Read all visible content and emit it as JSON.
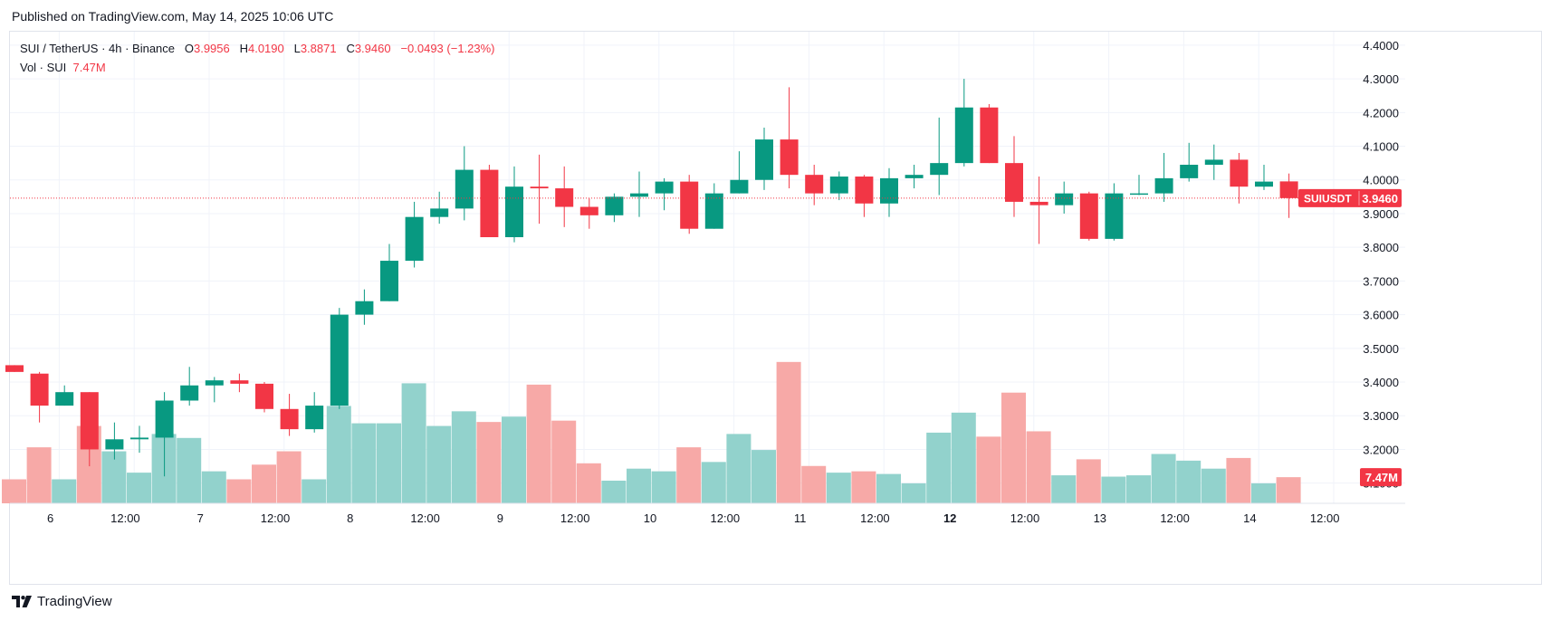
{
  "header": {
    "published": "Published on TradingView.com, May 14, 2025 10:06 UTC"
  },
  "legend": {
    "symbol": "SUI / TetherUS · 4h · Binance",
    "o_label": "O",
    "o_value": "3.9956",
    "h_label": "H",
    "h_value": "4.0190",
    "l_label": "L",
    "l_value": "3.8871",
    "c_label": "C",
    "c_value": "3.9460",
    "change": "−0.0493 (−1.23%)",
    "vol_label": "Vol · SUI",
    "vol_value": "7.47M"
  },
  "footer": {
    "brand": "TradingView",
    "logo_icon": "tradingview-logo-icon"
  },
  "colors": {
    "up": "#089981",
    "down": "#f23645",
    "up_volume": "#92d2cc",
    "down_volume": "#f7a9a7",
    "grid": "#f0f3fa",
    "text": "#131722",
    "price_line": "#f23645"
  },
  "chart_data": {
    "type": "candlestick",
    "interval": "4h",
    "y_axis": {
      "ticks": [
        "4.4000",
        "4.3000",
        "4.2000",
        "4.1000",
        "4.0000",
        "3.9000",
        "3.8000",
        "3.7000",
        "3.6000",
        "3.5000",
        "3.4000",
        "3.3000",
        "3.2000",
        "3.1000"
      ],
      "range": [
        3.04,
        4.44
      ],
      "side": "right"
    },
    "x_axis": {
      "ticks": [
        {
          "label": "6",
          "index": 1,
          "bold": false
        },
        {
          "label": "12:00",
          "index": 4,
          "bold": false
        },
        {
          "label": "7",
          "index": 7,
          "bold": false
        },
        {
          "label": "12:00",
          "index": 10,
          "bold": false
        },
        {
          "label": "8",
          "index": 13,
          "bold": false
        },
        {
          "label": "12:00",
          "index": 16,
          "bold": false
        },
        {
          "label": "9",
          "index": 19,
          "bold": false
        },
        {
          "label": "12:00",
          "index": 22,
          "bold": false
        },
        {
          "label": "10",
          "index": 25,
          "bold": false
        },
        {
          "label": "12:00",
          "index": 28,
          "bold": false
        },
        {
          "label": "11",
          "index": 31,
          "bold": false
        },
        {
          "label": "12:00",
          "index": 34,
          "bold": false
        },
        {
          "label": "12",
          "index": 37,
          "bold": true
        },
        {
          "label": "12:00",
          "index": 40,
          "bold": false
        },
        {
          "label": "13",
          "index": 43,
          "bold": false
        },
        {
          "label": "12:00",
          "index": 46,
          "bold": false
        },
        {
          "label": "14",
          "index": 49,
          "bold": false
        },
        {
          "label": "12:00",
          "index": 52,
          "bold": false
        }
      ]
    },
    "price_label": {
      "symbol": "SUIUSDT",
      "value": "3.9460",
      "price": 3.946
    },
    "volume_label": {
      "value": "7.47M"
    },
    "candles": [
      {
        "o": 3.45,
        "h": 3.45,
        "l": 3.43,
        "c": 3.43
      },
      {
        "o": 3.425,
        "h": 3.43,
        "l": 3.28,
        "c": 3.33
      },
      {
        "o": 3.33,
        "h": 3.39,
        "l": 3.33,
        "c": 3.37
      },
      {
        "o": 3.37,
        "h": 3.37,
        "l": 3.15,
        "c": 3.2
      },
      {
        "o": 3.2,
        "h": 3.28,
        "l": 3.17,
        "c": 3.23
      },
      {
        "o": 3.23,
        "h": 3.27,
        "l": 3.19,
        "c": 3.235
      },
      {
        "o": 3.235,
        "h": 3.37,
        "l": 3.12,
        "c": 3.345
      },
      {
        "o": 3.345,
        "h": 3.445,
        "l": 3.33,
        "c": 3.39
      },
      {
        "o": 3.39,
        "h": 3.415,
        "l": 3.34,
        "c": 3.405
      },
      {
        "o": 3.405,
        "h": 3.425,
        "l": 3.37,
        "c": 3.395
      },
      {
        "o": 3.395,
        "h": 3.4,
        "l": 3.31,
        "c": 3.32
      },
      {
        "o": 3.32,
        "h": 3.365,
        "l": 3.24,
        "c": 3.26
      },
      {
        "o": 3.26,
        "h": 3.37,
        "l": 3.25,
        "c": 3.33
      },
      {
        "o": 3.33,
        "h": 3.62,
        "l": 3.32,
        "c": 3.6
      },
      {
        "o": 3.6,
        "h": 3.675,
        "l": 3.57,
        "c": 3.64
      },
      {
        "o": 3.64,
        "h": 3.81,
        "l": 3.64,
        "c": 3.76
      },
      {
        "o": 3.76,
        "h": 3.935,
        "l": 3.74,
        "c": 3.89
      },
      {
        "o": 3.89,
        "h": 3.965,
        "l": 3.87,
        "c": 3.915
      },
      {
        "o": 3.915,
        "h": 4.1,
        "l": 3.88,
        "c": 4.03
      },
      {
        "o": 4.03,
        "h": 4.045,
        "l": 3.83,
        "c": 3.83
      },
      {
        "o": 3.83,
        "h": 4.04,
        "l": 3.815,
        "c": 3.98
      },
      {
        "o": 3.98,
        "h": 4.075,
        "l": 3.87,
        "c": 3.975
      },
      {
        "o": 3.975,
        "h": 4.04,
        "l": 3.86,
        "c": 3.92
      },
      {
        "o": 3.92,
        "h": 3.945,
        "l": 3.855,
        "c": 3.895
      },
      {
        "o": 3.895,
        "h": 3.96,
        "l": 3.875,
        "c": 3.95
      },
      {
        "o": 3.95,
        "h": 4.025,
        "l": 3.89,
        "c": 3.96
      },
      {
        "o": 3.96,
        "h": 4.005,
        "l": 3.91,
        "c": 3.995
      },
      {
        "o": 3.995,
        "h": 4.015,
        "l": 3.84,
        "c": 3.855
      },
      {
        "o": 3.855,
        "h": 3.99,
        "l": 3.855,
        "c": 3.96
      },
      {
        "o": 3.96,
        "h": 4.085,
        "l": 3.96,
        "c": 4.0
      },
      {
        "o": 4.0,
        "h": 4.155,
        "l": 3.97,
        "c": 4.12
      },
      {
        "o": 4.12,
        "h": 4.275,
        "l": 3.975,
        "c": 4.015
      },
      {
        "o": 4.015,
        "h": 4.045,
        "l": 3.925,
        "c": 3.96
      },
      {
        "o": 3.96,
        "h": 4.025,
        "l": 3.94,
        "c": 4.01
      },
      {
        "o": 4.01,
        "h": 4.015,
        "l": 3.89,
        "c": 3.93
      },
      {
        "o": 3.93,
        "h": 4.035,
        "l": 3.89,
        "c": 4.005
      },
      {
        "o": 4.005,
        "h": 4.045,
        "l": 3.975,
        "c": 4.015
      },
      {
        "o": 4.015,
        "h": 4.185,
        "l": 3.955,
        "c": 4.05
      },
      {
        "o": 4.05,
        "h": 4.3,
        "l": 4.04,
        "c": 4.215
      },
      {
        "o": 4.215,
        "h": 4.225,
        "l": 4.05,
        "c": 4.05
      },
      {
        "o": 4.05,
        "h": 4.13,
        "l": 3.89,
        "c": 3.935
      },
      {
        "o": 3.935,
        "h": 4.01,
        "l": 3.81,
        "c": 3.925
      },
      {
        "o": 3.925,
        "h": 3.995,
        "l": 3.9,
        "c": 3.96
      },
      {
        "o": 3.96,
        "h": 3.965,
        "l": 3.82,
        "c": 3.825
      },
      {
        "o": 3.825,
        "h": 3.99,
        "l": 3.82,
        "c": 3.96
      },
      {
        "o": 3.96,
        "h": 4.015,
        "l": 3.955,
        "c": 3.96
      },
      {
        "o": 3.96,
        "h": 4.08,
        "l": 3.935,
        "c": 4.005
      },
      {
        "o": 4.005,
        "h": 4.11,
        "l": 3.995,
        "c": 4.045
      },
      {
        "o": 4.045,
        "h": 4.105,
        "l": 4.0,
        "c": 4.06
      },
      {
        "o": 4.06,
        "h": 4.08,
        "l": 3.93,
        "c": 3.98
      },
      {
        "o": 3.98,
        "h": 4.045,
        "l": 3.97,
        "c": 3.995
      },
      {
        "o": 3.9956,
        "h": 4.019,
        "l": 3.8871,
        "c": 3.946
      }
    ],
    "volumes": [
      0.9,
      2.1,
      0.9,
      2.9,
      1.95,
      1.15,
      2.6,
      2.45,
      1.2,
      0.9,
      1.45,
      1.95,
      0.9,
      3.65,
      3.0,
      3.0,
      4.5,
      2.9,
      3.45,
      3.05,
      3.25,
      4.45,
      3.1,
      1.5,
      0.85,
      1.3,
      1.2,
      2.1,
      1.55,
      2.6,
      2.0,
      5.3,
      1.4,
      1.15,
      1.2,
      1.1,
      0.75,
      2.65,
      3.4,
      2.5,
      4.15,
      2.7,
      1.05,
      1.65,
      1.0,
      1.05,
      1.85,
      1.6,
      1.3,
      1.7,
      0.75,
      0.98
    ],
    "volume_axis_max": 5.6
  }
}
